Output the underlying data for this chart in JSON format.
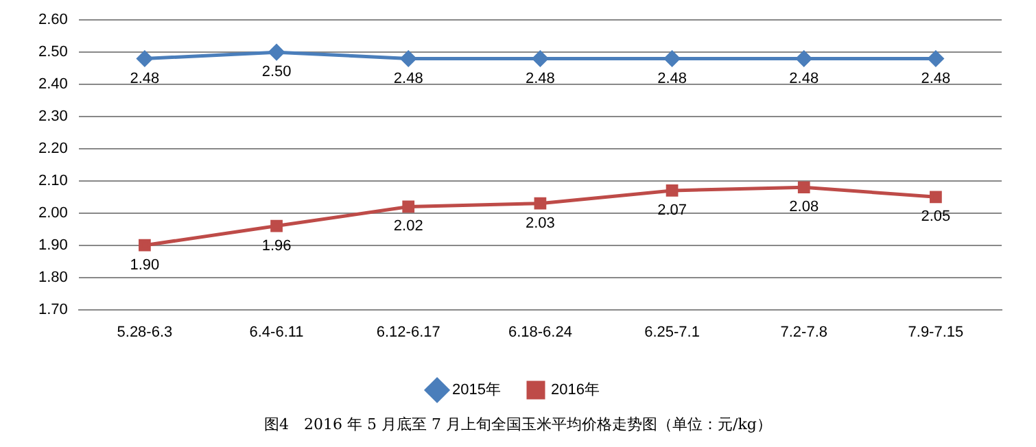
{
  "chart_data": {
    "type": "line",
    "categories": [
      "5.28-6.3",
      "6.4-6.11",
      "6.12-6.17",
      "6.18-6.24",
      "6.25-7.1",
      "7.2-7.8",
      "7.9-7.15"
    ],
    "series": [
      {
        "name": "2015年",
        "color": "#4a7ebb",
        "marker": "diamond",
        "values": [
          2.48,
          2.5,
          2.48,
          2.48,
          2.48,
          2.48,
          2.48
        ],
        "value_labels": [
          "2.48",
          "2.50",
          "2.48",
          "2.48",
          "2.48",
          "2.48",
          "2.48"
        ]
      },
      {
        "name": "2016年",
        "color": "#be4b48",
        "marker": "square",
        "values": [
          1.9,
          1.96,
          2.02,
          2.03,
          2.07,
          2.08,
          2.05
        ],
        "value_labels": [
          "1.90",
          "1.96",
          "2.02",
          "2.03",
          "2.07",
          "2.08",
          "2.05"
        ]
      }
    ],
    "ylim": [
      1.7,
      2.6
    ],
    "yticks": [
      {
        "value": 1.7,
        "label": "1.70"
      },
      {
        "value": 1.8,
        "label": "1.80"
      },
      {
        "value": 1.9,
        "label": "1.90"
      },
      {
        "value": 2.0,
        "label": "2.00"
      },
      {
        "value": 2.1,
        "label": "2.10"
      },
      {
        "value": 2.2,
        "label": "2.20"
      },
      {
        "value": 2.3,
        "label": "2.30"
      },
      {
        "value": 2.4,
        "label": "2.40"
      },
      {
        "value": 2.5,
        "label": "2.50"
      },
      {
        "value": 2.6,
        "label": "2.60"
      }
    ],
    "grid": "y",
    "legend": "bottom",
    "line_style": "solid",
    "annotations": [
      "图4　2016 年 5 月底至 7 月上旬全国玉米平均价格走势图（单位：元/kg）"
    ]
  }
}
